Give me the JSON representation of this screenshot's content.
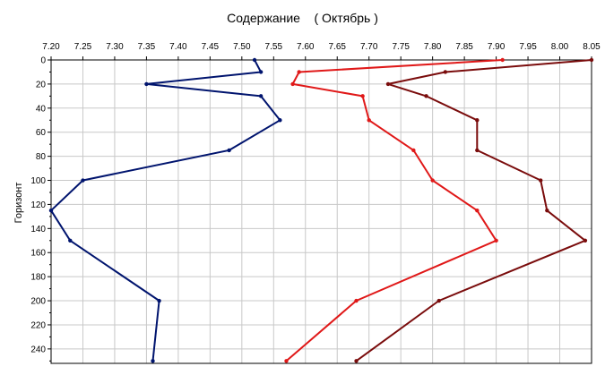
{
  "chart_data": {
    "type": "line",
    "title": "Содержание    ( Октябрь )",
    "xlabel": "",
    "ylabel": "Горизонт",
    "x_axis_position": "top",
    "y_axis_inverted": true,
    "xlim": [
      7.2,
      8.05
    ],
    "ylim": [
      0,
      252
    ],
    "x_ticks": [
      "7.20",
      "7.25",
      "7.30",
      "7.35",
      "7.40",
      "7.45",
      "7.50",
      "7.55",
      "7.60",
      "7.65",
      "7.70",
      "7.75",
      "7.80",
      "7.85",
      "7.90",
      "7.95",
      "8.00",
      "8.05"
    ],
    "y_ticks": [
      0,
      20,
      40,
      60,
      80,
      100,
      120,
      140,
      160,
      180,
      200,
      220,
      240
    ],
    "grid": true,
    "legend": "none",
    "series": [
      {
        "color": "#00146e",
        "points": [
          {
            "x": 7.52,
            "y": 0
          },
          {
            "x": 7.53,
            "y": 10
          },
          {
            "x": 7.35,
            "y": 20
          },
          {
            "x": 7.53,
            "y": 30
          },
          {
            "x": 7.56,
            "y": 50
          },
          {
            "x": 7.48,
            "y": 75
          },
          {
            "x": 7.25,
            "y": 100
          },
          {
            "x": 7.2,
            "y": 125
          },
          {
            "x": 7.23,
            "y": 150
          },
          {
            "x": 7.37,
            "y": 200
          },
          {
            "x": 7.36,
            "y": 250
          }
        ]
      },
      {
        "color": "#e01818",
        "points": [
          {
            "x": 7.91,
            "y": 0
          },
          {
            "x": 7.59,
            "y": 10
          },
          {
            "x": 7.58,
            "y": 20
          },
          {
            "x": 7.69,
            "y": 30
          },
          {
            "x": 7.7,
            "y": 50
          },
          {
            "x": 7.77,
            "y": 75
          },
          {
            "x": 7.8,
            "y": 100
          },
          {
            "x": 7.87,
            "y": 125
          },
          {
            "x": 7.9,
            "y": 150
          },
          {
            "x": 7.68,
            "y": 200
          },
          {
            "x": 7.57,
            "y": 250
          }
        ]
      },
      {
        "color": "#7a0c0c",
        "points": [
          {
            "x": 8.05,
            "y": 0
          },
          {
            "x": 7.82,
            "y": 10
          },
          {
            "x": 7.73,
            "y": 20
          },
          {
            "x": 7.79,
            "y": 30
          },
          {
            "x": 7.87,
            "y": 50
          },
          {
            "x": 7.87,
            "y": 75
          },
          {
            "x": 7.97,
            "y": 100
          },
          {
            "x": 7.98,
            "y": 125
          },
          {
            "x": 8.04,
            "y": 150
          },
          {
            "x": 7.81,
            "y": 200
          },
          {
            "x": 7.68,
            "y": 250
          }
        ]
      }
    ]
  }
}
